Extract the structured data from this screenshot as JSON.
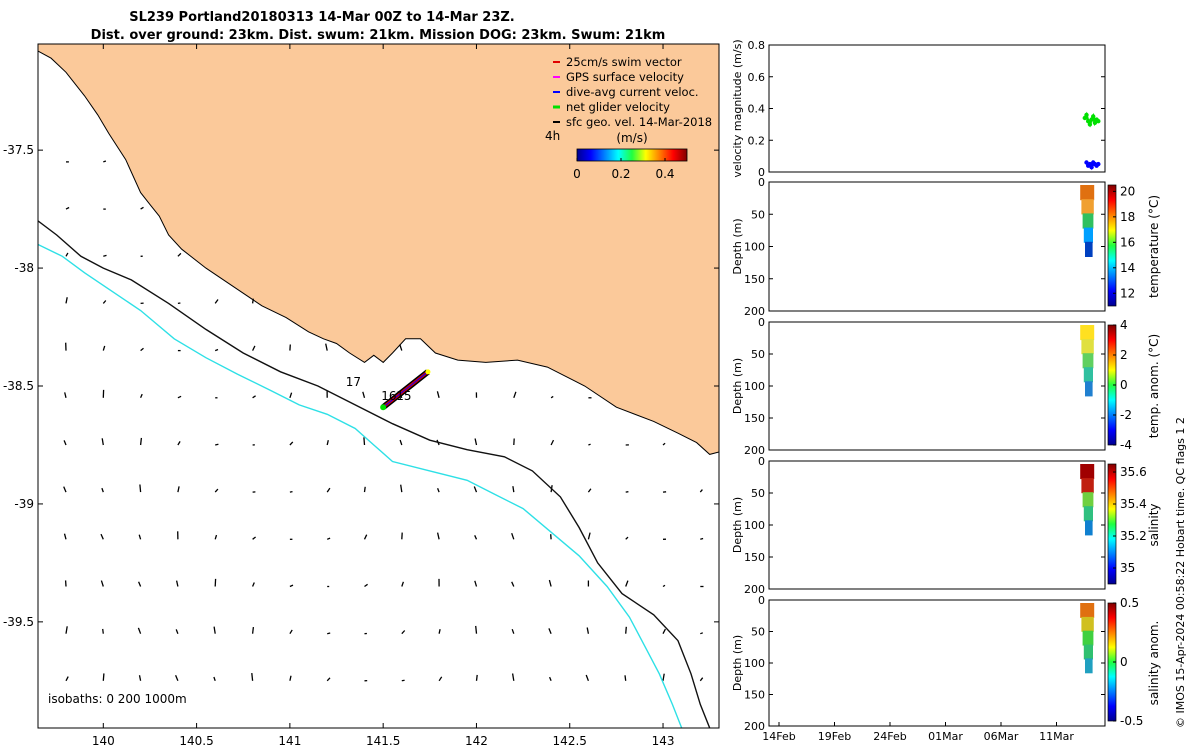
{
  "title": {
    "line1": "SL239 Portland20180313 14-Mar 00Z to 14-Mar 23Z.",
    "line2": "Dist. over ground: 23km. Dist. swum: 21km. Mission DOG: 23km. Swum: 21km"
  },
  "credit": "© IMOS 15-Apr-2024 00:58:22 Hobart time. QC flags 1  2",
  "colors": {
    "land": "#fbc99a",
    "isobath_200": "#111111",
    "isobath_1000": "#2ee0e6",
    "swim": "#e00000",
    "gps": "#ff00ff",
    "dive": "#0000ff",
    "net": "#00e000",
    "geo": "#000000"
  },
  "chart_data": [
    {
      "type": "map",
      "xlim": [
        139.65,
        143.3
      ],
      "ylim": [
        -39.95,
        -37.05
      ],
      "xticks": [
        "140",
        "140.5",
        "141",
        "141.5",
        "142",
        "142.5",
        "143"
      ],
      "xtick_values": [
        140,
        140.5,
        141,
        141.5,
        142,
        142.5,
        143
      ],
      "yticks": [
        "-37.5",
        "-38",
        "-38.5",
        "-39",
        "-39.5"
      ],
      "ytick_values": [
        -37.5,
        -38,
        -38.5,
        -39,
        -39.5
      ],
      "legend": {
        "placement": "top-right",
        "entries": [
          {
            "label": "25cm/s swim vector",
            "color_key": "swim"
          },
          {
            "label": "GPS surface velocity",
            "color_key": "gps"
          },
          {
            "label": "dive-avg current veloc.",
            "color_key": "dive"
          },
          {
            "label": "net glider velocity",
            "color_key": "net"
          },
          {
            "label": "sfc geo. vel. 14-Mar-2018",
            "color_key": "geo"
          }
        ]
      },
      "colorbar": {
        "label": "(m/s)",
        "ticks": [
          "0",
          "0.2",
          "0.4"
        ],
        "tick_values": [
          0,
          0.2,
          0.4
        ],
        "range": [
          0,
          0.5
        ]
      },
      "time_marker": "4h",
      "isobath_label": "isobaths: 0   200  1000m",
      "track_labels": [
        {
          "text": "17",
          "lon": 141.3,
          "lat": -38.5
        },
        {
          "text": "16",
          "lon": 141.49,
          "lat": -38.56
        },
        {
          "text": "15",
          "lon": 141.57,
          "lat": -38.56
        }
      ],
      "track": [
        [
          141.5,
          -38.59
        ],
        [
          141.58,
          -38.54
        ],
        [
          141.66,
          -38.49
        ],
        [
          141.74,
          -38.44
        ]
      ],
      "coastline": [
        [
          139.65,
          -37.05
        ],
        [
          140.0,
          -37.05
        ],
        [
          140.45,
          -37.05
        ],
        [
          141.0,
          -37.05
        ],
        [
          141.5,
          -37.05
        ],
        [
          142.0,
          -37.05
        ],
        [
          142.5,
          -37.05
        ],
        [
          143.0,
          -37.05
        ],
        [
          143.3,
          -37.05
        ],
        [
          143.3,
          -38.78
        ],
        [
          143.25,
          -38.79
        ],
        [
          143.18,
          -38.74
        ],
        [
          143.08,
          -38.7
        ],
        [
          142.95,
          -38.65
        ],
        [
          142.75,
          -38.59
        ],
        [
          142.58,
          -38.5
        ],
        [
          142.38,
          -38.42
        ],
        [
          142.22,
          -38.39
        ],
        [
          142.05,
          -38.4
        ],
        [
          141.9,
          -38.39
        ],
        [
          141.78,
          -38.36
        ],
        [
          141.7,
          -38.3
        ],
        [
          141.62,
          -38.3
        ],
        [
          141.55,
          -38.36
        ],
        [
          141.5,
          -38.4
        ],
        [
          141.45,
          -38.37
        ],
        [
          141.4,
          -38.4
        ],
        [
          141.32,
          -38.36
        ],
        [
          141.25,
          -38.32
        ],
        [
          141.18,
          -38.3
        ],
        [
          141.1,
          -38.27
        ],
        [
          140.98,
          -38.21
        ],
        [
          140.85,
          -38.16
        ],
        [
          140.7,
          -38.08
        ],
        [
          140.55,
          -38.0
        ],
        [
          140.42,
          -37.92
        ],
        [
          140.35,
          -37.86
        ],
        [
          140.3,
          -37.78
        ],
        [
          140.25,
          -37.73
        ],
        [
          140.2,
          -37.68
        ],
        [
          140.12,
          -37.54
        ],
        [
          140.03,
          -37.43
        ],
        [
          139.97,
          -37.35
        ],
        [
          139.9,
          -37.27
        ],
        [
          139.8,
          -37.17
        ],
        [
          139.72,
          -37.11
        ],
        [
          139.65,
          -37.08
        ]
      ],
      "isobath_200_line": [
        [
          139.65,
          -37.8
        ],
        [
          139.75,
          -37.86
        ],
        [
          139.88,
          -37.95
        ],
        [
          140.0,
          -38.0
        ],
        [
          140.15,
          -38.05
        ],
        [
          140.35,
          -38.15
        ],
        [
          140.55,
          -38.26
        ],
        [
          140.75,
          -38.36
        ],
        [
          140.95,
          -38.44
        ],
        [
          141.15,
          -38.5
        ],
        [
          141.35,
          -38.58
        ],
        [
          141.55,
          -38.66
        ],
        [
          141.75,
          -38.73
        ],
        [
          141.95,
          -38.77
        ],
        [
          142.15,
          -38.8
        ],
        [
          142.3,
          -38.86
        ],
        [
          142.45,
          -38.97
        ],
        [
          142.55,
          -39.1
        ],
        [
          142.65,
          -39.25
        ],
        [
          142.78,
          -39.38
        ],
        [
          142.95,
          -39.47
        ],
        [
          143.08,
          -39.58
        ],
        [
          143.15,
          -39.72
        ],
        [
          143.2,
          -39.85
        ],
        [
          143.25,
          -39.95
        ]
      ],
      "isobath_1000_line": [
        [
          139.65,
          -37.9
        ],
        [
          139.78,
          -37.95
        ],
        [
          139.9,
          -38.02
        ],
        [
          140.05,
          -38.1
        ],
        [
          140.2,
          -38.18
        ],
        [
          140.38,
          -38.3
        ],
        [
          140.55,
          -38.38
        ],
        [
          140.72,
          -38.45
        ],
        [
          140.9,
          -38.52
        ],
        [
          141.05,
          -38.58
        ],
        [
          141.2,
          -38.62
        ],
        [
          141.35,
          -38.68
        ],
        [
          141.45,
          -38.75
        ],
        [
          141.55,
          -38.82
        ],
        [
          141.75,
          -38.86
        ],
        [
          141.95,
          -38.9
        ],
        [
          142.1,
          -38.96
        ],
        [
          142.25,
          -39.02
        ],
        [
          142.4,
          -39.12
        ],
        [
          142.55,
          -39.22
        ],
        [
          142.7,
          -39.35
        ],
        [
          142.82,
          -39.48
        ],
        [
          142.9,
          -39.6
        ],
        [
          142.98,
          -39.72
        ],
        [
          143.05,
          -39.85
        ],
        [
          143.1,
          -39.95
        ]
      ]
    },
    {
      "type": "scatter",
      "panel": "velocity",
      "ylabel": "velocity magnitude (m/s)",
      "ylim": [
        0,
        0.8
      ],
      "yticks": [
        "0",
        "0.2",
        "0.4",
        "0.6",
        "0.8"
      ],
      "ytick_values": [
        0,
        0.2,
        0.4,
        0.6,
        0.8
      ],
      "series": [
        {
          "color_key": "net",
          "x": [
            0.94,
            0.945,
            0.95,
            0.955,
            0.96,
            0.965,
            0.97,
            0.975,
            0.98
          ],
          "values": [
            0.34,
            0.36,
            0.32,
            0.3,
            0.33,
            0.35,
            0.31,
            0.33,
            0.32
          ]
        },
        {
          "color_key": "dive",
          "x": [
            0.945,
            0.95,
            0.955,
            0.96,
            0.965,
            0.97,
            0.975,
            0.98
          ],
          "values": [
            0.06,
            0.04,
            0.05,
            0.03,
            0.06,
            0.05,
            0.04,
            0.05
          ]
        }
      ]
    },
    {
      "type": "heatmap",
      "panel": "temperature",
      "ylabel": "Depth (m)",
      "yticks": [
        "0",
        "50",
        "100",
        "150",
        "200"
      ],
      "ytick_values": [
        0,
        50,
        100,
        150,
        200
      ],
      "ylim": [
        0,
        200
      ],
      "colorbar": {
        "label": "temperature (°C)",
        "ticks": [
          "20",
          "18",
          "16",
          "14",
          "12"
        ],
        "tick_values": [
          20,
          18,
          16,
          14,
          12
        ],
        "range": [
          11,
          20.5
        ]
      }
    },
    {
      "type": "heatmap",
      "panel": "temp_anom",
      "ylabel": "Depth (m)",
      "yticks": [
        "0",
        "50",
        "100",
        "150",
        "200"
      ],
      "ytick_values": [
        0,
        50,
        100,
        150,
        200
      ],
      "ylim": [
        0,
        200
      ],
      "colorbar": {
        "label": "temp. anom. (°C)",
        "ticks": [
          "4",
          "2",
          "0",
          "-2",
          "-4"
        ],
        "tick_values": [
          4,
          2,
          0,
          -2,
          -4
        ],
        "range": [
          -4,
          4
        ]
      }
    },
    {
      "type": "heatmap",
      "panel": "salinity",
      "ylabel": "Depth (m)",
      "yticks": [
        "0",
        "50",
        "100",
        "150",
        "200"
      ],
      "ytick_values": [
        0,
        50,
        100,
        150,
        200
      ],
      "ylim": [
        0,
        200
      ],
      "colorbar": {
        "label": "salinity",
        "ticks": [
          "35.6",
          "35.4",
          "35.2",
          "35"
        ],
        "tick_values": [
          35.6,
          35.4,
          35.2,
          35.0
        ],
        "range": [
          34.9,
          35.65
        ]
      }
    },
    {
      "type": "heatmap",
      "panel": "sal_anom",
      "ylabel": "Depth (m)",
      "yticks": [
        "0",
        "50",
        "100",
        "150",
        "200"
      ],
      "ytick_values": [
        0,
        50,
        100,
        150,
        200
      ],
      "ylim": [
        0,
        200
      ],
      "xticks": [
        "14Feb",
        "19Feb",
        "24Feb",
        "01Mar",
        "06Mar",
        "11Mar"
      ],
      "colorbar": {
        "label": "salinity anom.",
        "ticks": [
          "0.5",
          "0",
          "-0.5"
        ],
        "tick_values": [
          0.5,
          0,
          -0.5
        ],
        "range": [
          -0.5,
          0.5
        ]
      }
    }
  ]
}
